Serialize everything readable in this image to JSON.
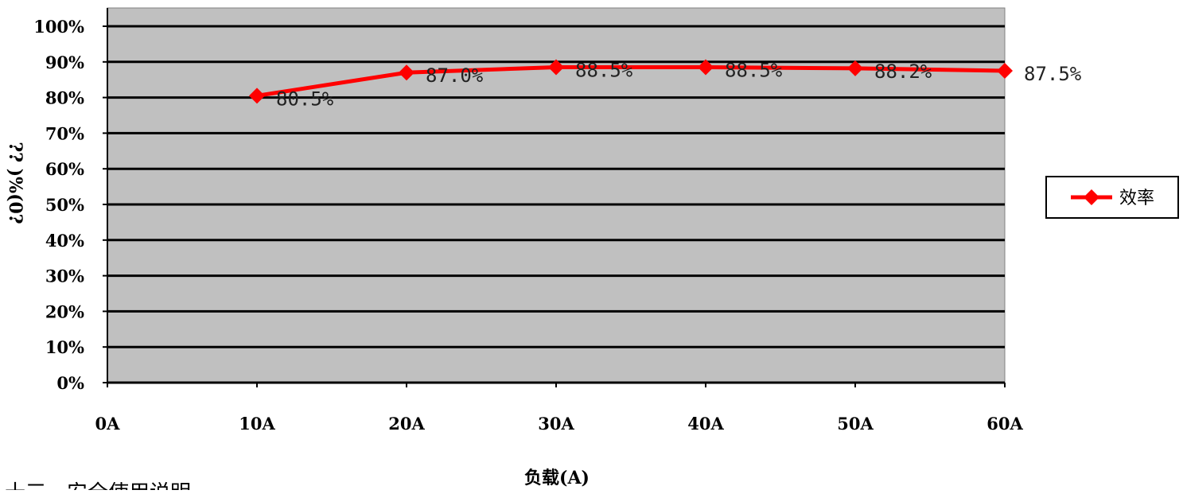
{
  "chart_data": {
    "type": "line",
    "categories": [
      "0A",
      "10A",
      "20A",
      "30A",
      "40A",
      "50A",
      "60A"
    ],
    "series": [
      {
        "name": "效率",
        "color": "#ff0000",
        "marker": "diamond",
        "points": [
          {
            "x": "10A",
            "y": 80.5,
            "label": "80.5%"
          },
          {
            "x": "20A",
            "y": 87.0,
            "label": "87.0%"
          },
          {
            "x": "30A",
            "y": 88.5,
            "label": "88.5%"
          },
          {
            "x": "40A",
            "y": 88.5,
            "label": "88.5%"
          },
          {
            "x": "50A",
            "y": 88.2,
            "label": "88.2%"
          },
          {
            "x": "60A",
            "y": 87.5,
            "label": "87.5%"
          }
        ]
      }
    ],
    "y_ticks": [
      "0%",
      "10%",
      "20%",
      "30%",
      "40%",
      "50%",
      "60%",
      "70%",
      "80%",
      "90%",
      "100%"
    ],
    "ylim": [
      0,
      100
    ],
    "xlabel": "负载(A)",
    "ylabel": "?? )%(0?",
    "grid": true,
    "plot_background": "#c0c0c0",
    "legend_position": "right"
  },
  "page_footer_fragment": "十三、安全使用说明"
}
